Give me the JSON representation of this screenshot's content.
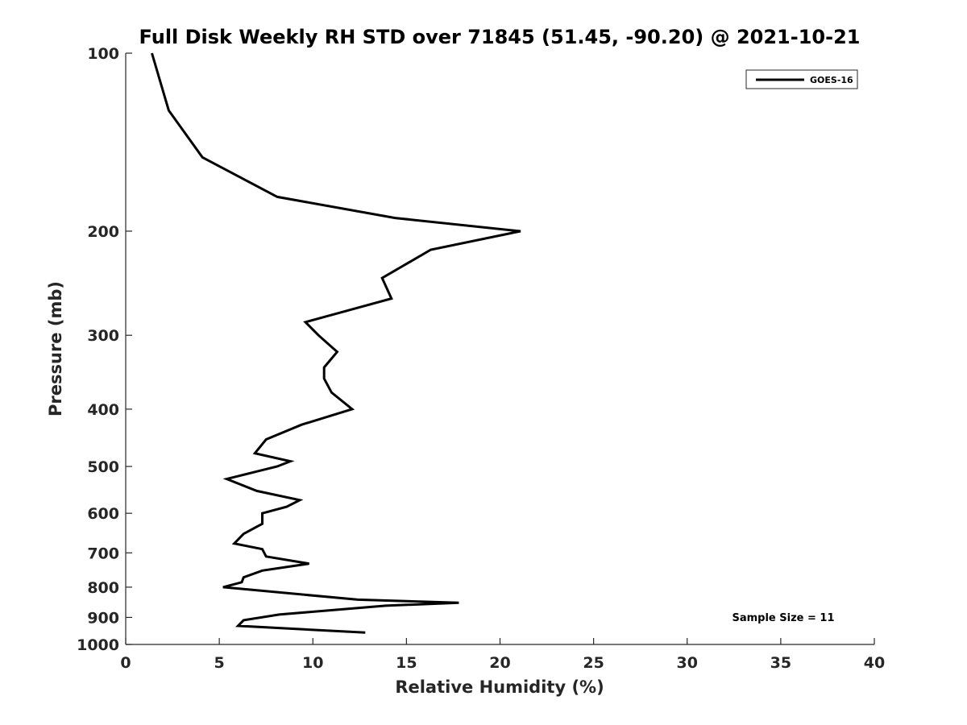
{
  "chart_data": {
    "type": "line",
    "title": "Full Disk Weekly RH STD over 71845 (51.45, -90.20) @ 2021-10-21",
    "xlabel": "Relative Humidity (%)",
    "ylabel": "Pressure (mb)",
    "xlim": [
      0,
      40
    ],
    "ylim": [
      100,
      1000
    ],
    "y_scale": "log",
    "y_reversed": true,
    "x_ticks": [
      "0",
      "5",
      "10",
      "15",
      "20",
      "25",
      "30",
      "35",
      "40"
    ],
    "y_ticks": [
      "100",
      "200",
      "300",
      "400",
      "500",
      "600",
      "700",
      "800",
      "900",
      "1000"
    ],
    "grid": false,
    "legend_position": "top-right",
    "annotation": "Sample Size = 11",
    "series": [
      {
        "name": "GOES-16",
        "color": "#000000",
        "points": [
          [
            1.4,
            100
          ],
          [
            2.3,
            125
          ],
          [
            4.1,
            150
          ],
          [
            8.1,
            175
          ],
          [
            14.4,
            190
          ],
          [
            21.1,
            200
          ],
          [
            16.3,
            215
          ],
          [
            13.7,
            240
          ],
          [
            14.2,
            260
          ],
          [
            9.6,
            285
          ],
          [
            10.3,
            300
          ],
          [
            11.3,
            320
          ],
          [
            10.6,
            340
          ],
          [
            10.6,
            355
          ],
          [
            11.0,
            375
          ],
          [
            12.1,
            400
          ],
          [
            9.4,
            425
          ],
          [
            7.5,
            450
          ],
          [
            6.9,
            475
          ],
          [
            8.8,
            490
          ],
          [
            8.1,
            500
          ],
          [
            5.4,
            525
          ],
          [
            7.0,
            550
          ],
          [
            9.3,
            570
          ],
          [
            8.6,
            585
          ],
          [
            7.3,
            600
          ],
          [
            7.3,
            625
          ],
          [
            6.3,
            650
          ],
          [
            5.8,
            675
          ],
          [
            7.3,
            690
          ],
          [
            7.5,
            710
          ],
          [
            9.8,
            730
          ],
          [
            7.3,
            750
          ],
          [
            6.3,
            770
          ],
          [
            6.2,
            785
          ],
          [
            5.2,
            800
          ],
          [
            12.4,
            840
          ],
          [
            17.8,
            850
          ],
          [
            13.9,
            860
          ],
          [
            8.2,
            890
          ],
          [
            6.3,
            910
          ],
          [
            6.0,
            930
          ],
          [
            12.8,
            955
          ]
        ]
      }
    ]
  }
}
